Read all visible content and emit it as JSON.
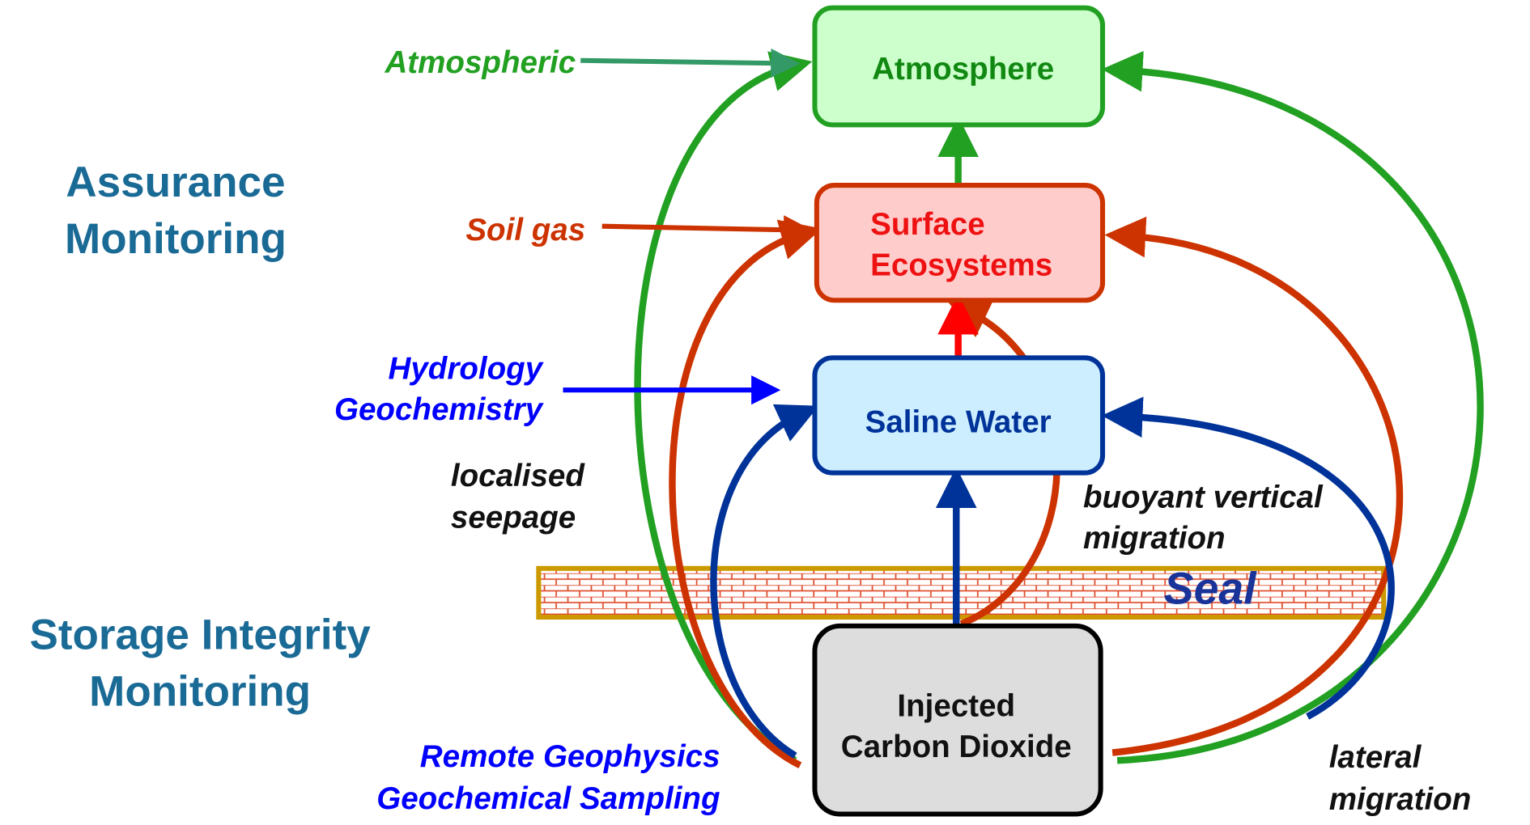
{
  "sections": [
    [
      "Assurance",
      "Monitoring"
    ],
    [
      "Storage Integrity",
      "Monitoring"
    ]
  ],
  "nodes": {
    "atmosphere": "Atmosphere",
    "surface": [
      "Surface",
      "Ecosystems"
    ],
    "saline": "Saline Water",
    "injected": [
      "Injected",
      "Carbon Dioxide"
    ]
  },
  "methods": {
    "atmospheric": "Atmospheric",
    "soil": "Soil gas",
    "hydro": [
      "Hydrology",
      "Geochemistry"
    ],
    "remote": [
      "Remote Geophysics",
      "Geochemical Sampling"
    ]
  },
  "pathways": {
    "localised": [
      "localised",
      "seepage"
    ],
    "buoyant": [
      "buoyant vertical",
      "migration"
    ],
    "lateral": [
      "lateral",
      "migration"
    ]
  },
  "seal": "Seal"
}
